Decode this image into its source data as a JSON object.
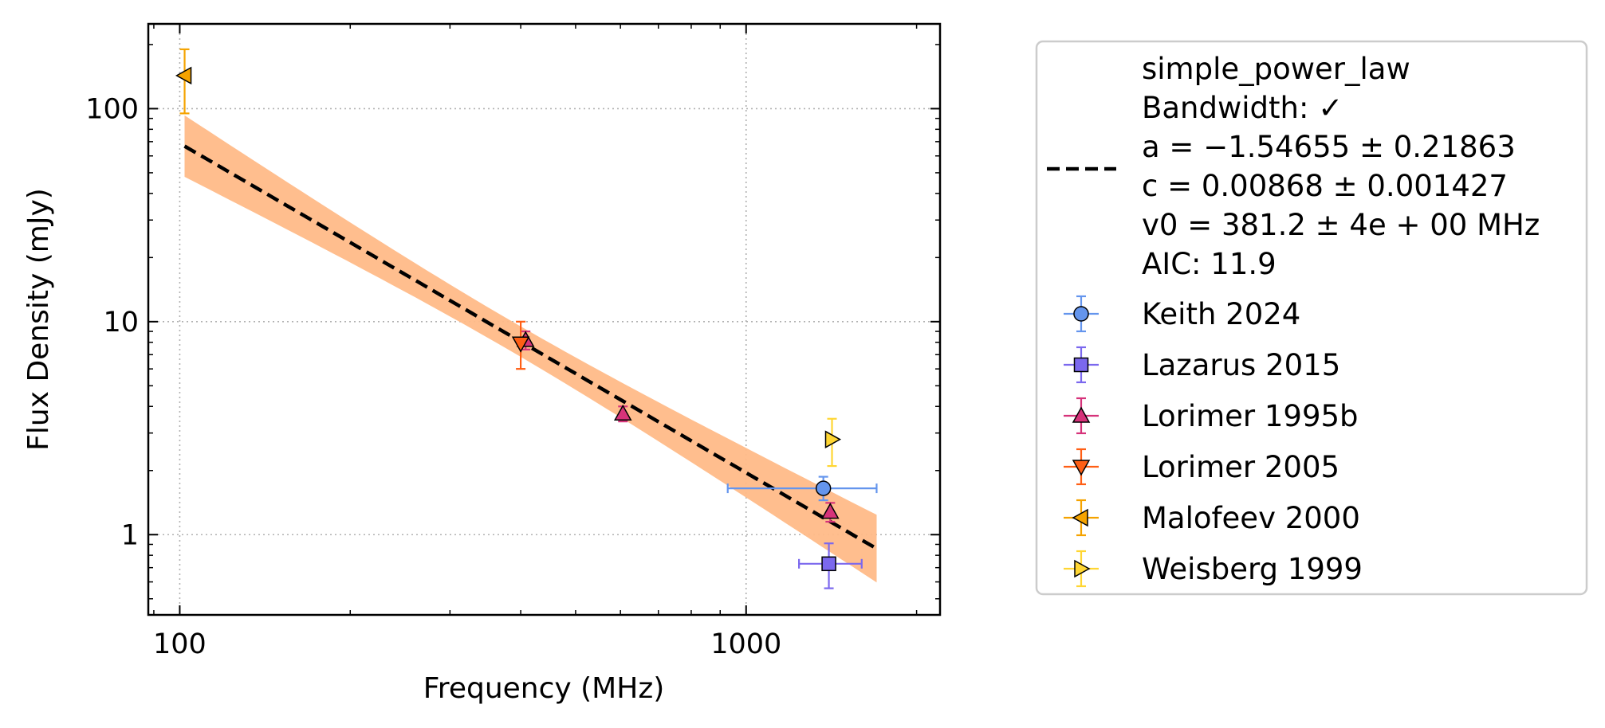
{
  "chart_data": {
    "type": "scatter",
    "title": "",
    "xlabel": "Frequency (MHz)",
    "ylabel": "Flux Density (mJy)",
    "xscale": "log",
    "yscale": "log",
    "xlim": [
      88,
      2200
    ],
    "ylim": [
      0.42,
      250
    ],
    "xticks": [
      {
        "value": 100,
        "label": "100"
      },
      {
        "value": 1000,
        "label": "1000"
      }
    ],
    "yticks": [
      {
        "value": 1,
        "label": "1"
      },
      {
        "value": 10,
        "label": "10"
      },
      {
        "value": 100,
        "label": "100"
      }
    ],
    "grid": true,
    "legend_placement": "outside-right",
    "fit": {
      "name": "simple_power_law",
      "legend_lines": [
        "simple_power_law",
        "Bandwidth: ✓",
        "a = −1.54655 ± 0.21863",
        "c = 0.00868 ± 0.001427",
        "v0 = 381.2 ± 4e + 00 MHz",
        "AIC: 11.9"
      ],
      "a": -1.54655,
      "a_err": 0.21863,
      "c": 0.00868,
      "c_err": 0.001427,
      "v0": 381.2,
      "x_range": [
        102,
        1700
      ],
      "line_color": "#000000",
      "band_color": "#ffbb88"
    },
    "series": [
      {
        "name": "Keith 2024",
        "marker": "circle",
        "color": "#6495ed",
        "points": [
          {
            "x": 1369,
            "y": 1.65,
            "yerr": [
              0.2,
              0.22
            ],
            "xerr": [
              441,
              331
            ]
          }
        ]
      },
      {
        "name": "Lazarus 2015",
        "marker": "square",
        "color": "#7b68ee",
        "points": [
          {
            "x": 1400,
            "y": 0.73,
            "yerr": [
              0.17,
              0.18
            ],
            "xerr": [
              160,
              200
            ]
          }
        ]
      },
      {
        "name": "Lorimer 1995b",
        "marker": "triangle-up",
        "color": "#d6337a",
        "points": [
          {
            "x": 408,
            "y": 8.2,
            "yerr": [
              0.8,
              0.8
            ]
          },
          {
            "x": 606,
            "y": 3.7,
            "yerr": [
              0.3,
              0.3
            ]
          },
          {
            "x": 1408,
            "y": 1.28,
            "yerr": [
              0.13,
              0.13
            ]
          }
        ]
      },
      {
        "name": "Lorimer 2005",
        "marker": "triangle-down",
        "color": "#ff5f15",
        "points": [
          {
            "x": 400,
            "y": 7.9,
            "yerr": [
              1.9,
              2.1
            ]
          }
        ]
      },
      {
        "name": "Malofeev 2000",
        "marker": "triangle-left",
        "color": "#f5a300",
        "points": [
          {
            "x": 102,
            "y": 143,
            "yerr": [
              48,
              47
            ]
          }
        ]
      },
      {
        "name": "Weisberg 1999",
        "marker": "triangle-right",
        "color": "#ffd633",
        "points": [
          {
            "x": 1418,
            "y": 2.8,
            "yerr": [
              0.7,
              0.7
            ]
          }
        ]
      }
    ]
  }
}
